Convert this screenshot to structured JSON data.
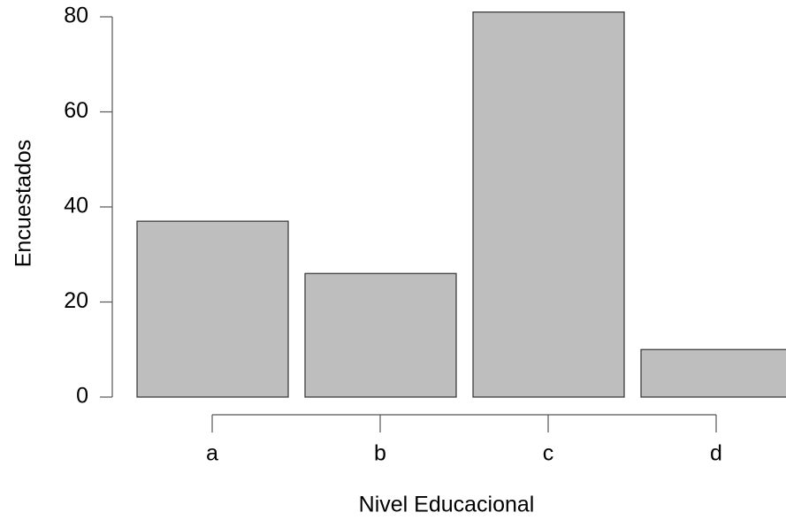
{
  "chart_data": {
    "type": "bar",
    "x_label": "Nivel Educacional",
    "y_label": "Encuestados",
    "categories": [
      "a",
      "b",
      "c",
      "d"
    ],
    "values": [
      37,
      26,
      81,
      10
    ],
    "color": "#bebebe",
    "ylim": [
      0,
      80
    ],
    "yticks": [
      0,
      20,
      40,
      60,
      80
    ]
  }
}
